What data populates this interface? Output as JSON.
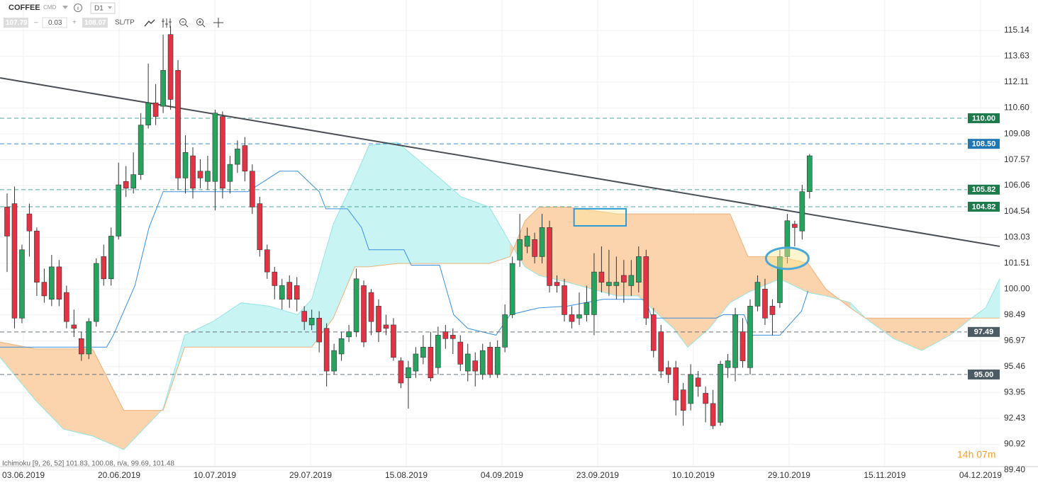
{
  "toolbar": {
    "symbol": "COFFEE",
    "market": "CMD",
    "timeframe": "D1",
    "bid": "107.79",
    "spread": "0.03",
    "ask": "108.07",
    "sltp": "SL/TP"
  },
  "indicator_label": "Ichimoku [9, 26, 52] 101.83, 100.08, n/a, 99.69, 101.48",
  "timer": "14h 07m",
  "chart_data": {
    "type": "candlestick",
    "up_color": "#27a35f",
    "down_color": "#e23344",
    "xlim": [
      -0.954,
      133.588
    ],
    "ylim": [
      89.65,
      116.92
    ],
    "grid": true,
    "xticks": [
      {
        "value": 2.2,
        "label": "03.06.2019"
      },
      {
        "value": 15.08,
        "label": "20.06.2019"
      },
      {
        "value": 27.96,
        "label": "10.07.2019"
      },
      {
        "value": 40.84,
        "label": "29.07.2019"
      },
      {
        "value": 53.72,
        "label": "15.08.2019"
      },
      {
        "value": 66.6,
        "label": "04.09.2019"
      },
      {
        "value": 79.48,
        "label": "23.09.2019"
      },
      {
        "value": 92.36,
        "label": "10.10.2019"
      },
      {
        "value": 105.24,
        "label": "29.10.2019"
      },
      {
        "value": 118.12,
        "label": "15.11.2019"
      },
      {
        "value": 131.0,
        "label": "04.12.2019"
      }
    ],
    "yticks": [
      115.14,
      113.63,
      112.11,
      {
        "value": 110.6,
        "label": "110.60"
      },
      109.08,
      107.57,
      106.06,
      104.54,
      103.03,
      101.51,
      {
        "value": 100,
        "label": "100.00"
      },
      98.49,
      96.97,
      95.46,
      93.95,
      92.43,
      90.92,
      {
        "value": 89.4,
        "label": "89.40"
      }
    ],
    "open": [
      104.8,
      105.0,
      98.3,
      104.4,
      103.4,
      100.4,
      99.4,
      101.3,
      99.8,
      97.9,
      97.1,
      96.2,
      98.1,
      101.9,
      100.6,
      103.1,
      106.3,
      105.9,
      106.7,
      109.6,
      110.9,
      110.7,
      114.9,
      112.8,
      106.5,
      107.8,
      106.9,
      106.3,
      106.3,
      110.1,
      106.3,
      107.3,
      108.4,
      106.9,
      105.0,
      102.3,
      101.0,
      99.4,
      100.4,
      100.2,
      98.7,
      97.9,
      98.3,
      97.7,
      95.2,
      96.2,
      97.2,
      97.5,
      100.2,
      99.8,
      99.0,
      97.9,
      97.9,
      95.8,
      94.8,
      95.2,
      96.0,
      96.6,
      95.4,
      97.5,
      97.3,
      96.9,
      95.2,
      95.8,
      95.0,
      96.6,
      95.0,
      96.6,
      98.5,
      101.7,
      102.5,
      102.9,
      101.9,
      103.6,
      100.4,
      100.2,
      98.5,
      98.3,
      98.5,
      98.5,
      101.0,
      100.2,
      100.2,
      100.8,
      100.2,
      100.4,
      101.9,
      98.5,
      97.5,
      95.4,
      95.4,
      94.1,
      93.3,
      94.8,
      93.9,
      93.3,
      92.2,
      95.4,
      95.4,
      97.5,
      95.4,
      99.0,
      100.0,
      99.0,
      99.2,
      101.9,
      103.8,
      103.4,
      105.7
    ],
    "high": [
      105.6,
      106.0,
      102.6,
      105.0,
      103.6,
      101.2,
      102.0,
      101.7,
      100.2,
      98.8,
      97.5,
      98.3,
      101.8,
      102.6,
      103.6,
      107.4,
      107.2,
      108.0,
      110.3,
      113.2,
      112.0,
      114.9,
      115.4,
      113.4,
      109.0,
      108.3,
      107.6,
      107.8,
      110.5,
      110.4,
      107.8,
      108.7,
      108.9,
      107.3,
      105.4,
      102.6,
      101.3,
      100.6,
      100.8,
      100.7,
      99.0,
      98.8,
      98.7,
      98.0,
      96.8,
      97.5,
      97.9,
      101.2,
      100.5,
      100.0,
      99.4,
      98.5,
      98.3,
      96.0,
      95.8,
      96.6,
      97.3,
      97.5,
      97.8,
      97.9,
      97.7,
      97.3,
      96.8,
      96.3,
      96.8,
      96.9,
      97.0,
      99.1,
      101.9,
      104.4,
      103.6,
      103.3,
      104.4,
      104.0,
      100.8,
      100.6,
      99.0,
      99.8,
      100.2,
      102.1,
      102.5,
      102.3,
      101.9,
      101.7,
      101.7,
      102.5,
      102.3,
      98.9,
      97.9,
      95.8,
      95.8,
      94.5,
      95.6,
      95.2,
      94.3,
      94.1,
      95.8,
      96.2,
      98.9,
      98.3,
      99.4,
      100.8,
      100.6,
      99.4,
      102.3,
      104.4,
      104.0,
      106.1,
      107.9
    ],
    "low": [
      101.0,
      97.7,
      98.0,
      101.9,
      99.6,
      99.2,
      99.0,
      99.0,
      97.7,
      97.2,
      95.8,
      95.9,
      97.8,
      100.2,
      100.2,
      102.9,
      105.4,
      105.6,
      106.4,
      109.4,
      109.6,
      110.3,
      110.5,
      105.8,
      105.6,
      105.3,
      105.9,
      105.8,
      104.6,
      105.3,
      105.6,
      106.8,
      106.3,
      104.4,
      101.9,
      100.6,
      99.4,
      98.8,
      98.9,
      98.7,
      97.6,
      97.6,
      96.3,
      94.3,
      95.0,
      95.8,
      96.9,
      97.2,
      96.6,
      97.3,
      96.9,
      97.3,
      95.8,
      94.2,
      93.0,
      94.8,
      95.6,
      94.6,
      95.0,
      96.5,
      96.2,
      95.2,
      94.6,
      94.3,
      94.7,
      94.8,
      94.8,
      96.3,
      98.3,
      101.3,
      102.1,
      101.5,
      101.5,
      99.8,
      99.8,
      98.1,
      97.7,
      97.9,
      98.1,
      97.3,
      99.8,
      99.6,
      99.4,
      99.2,
      99.6,
      99.8,
      97.9,
      96.0,
      94.8,
      94.5,
      92.6,
      92.0,
      92.9,
      93.7,
      92.2,
      91.8,
      92.0,
      94.8,
      94.6,
      95.4,
      95.0,
      98.7,
      97.9,
      97.3,
      98.9,
      101.5,
      102.5,
      102.9,
      105.3
    ],
    "close": [
      103.1,
      98.3,
      102.3,
      103.4,
      100.4,
      99.6,
      101.3,
      99.4,
      98.1,
      97.7,
      96.2,
      98.1,
      101.5,
      100.6,
      103.1,
      106.1,
      105.9,
      106.7,
      109.6,
      110.9,
      110.1,
      112.8,
      111.1,
      106.5,
      108.0,
      105.9,
      106.5,
      106.9,
      110.3,
      105.9,
      107.3,
      108.2,
      106.9,
      104.8,
      102.3,
      101.0,
      100.2,
      100.2,
      99.4,
      99.4,
      98.1,
      98.3,
      96.9,
      95.2,
      96.4,
      97.1,
      97.5,
      100.6,
      96.9,
      98.1,
      97.5,
      97.7,
      96.0,
      94.5,
      95.4,
      96.2,
      96.6,
      94.8,
      97.3,
      97.1,
      97.1,
      95.6,
      96.2,
      95.2,
      96.4,
      95.0,
      96.6,
      98.5,
      101.5,
      102.9,
      103.1,
      101.9,
      103.6,
      100.2,
      100.2,
      98.5,
      98.1,
      98.5,
      99.2,
      101.0,
      100.4,
      100.4,
      100.4,
      100.4,
      100.8,
      101.9,
      98.3,
      96.4,
      95.2,
      95.0,
      93.5,
      92.9,
      95.0,
      94.3,
      93.3,
      92.0,
      95.6,
      95.8,
      98.5,
      95.8,
      99.0,
      100.4,
      98.3,
      98.5,
      101.9,
      104.0,
      103.6,
      105.7,
      107.8
    ],
    "cloud": {
      "up_color": "#c9f4f4",
      "down_color": "#fbd3ad",
      "up_edge": "#97e3e3",
      "down_edge": "#eeb27c",
      "x": [
        -0.95,
        3.8,
        7.6,
        11.5,
        15.7,
        21.0,
        23.9,
        27.7,
        31.5,
        35.3,
        39.1,
        41.0,
        43.9,
        46.8,
        48.7,
        52.5,
        58.2,
        61.1,
        64.9,
        67.7,
        69.7,
        71.6,
        75.4,
        82.1,
        84.9,
        89.7,
        91.6,
        94.5,
        97.3,
        99.7,
        104.0,
        107.8,
        110.2,
        113.5,
        115.5,
        119.3,
        123.1,
        126.9,
        129.8,
        131.7,
        133.6
      ],
      "span_a": [
        96.0,
        93.5,
        91.8,
        91.4,
        90.6,
        93.0,
        97.3,
        98.1,
        99.2,
        99.0,
        98.5,
        99.4,
        103.8,
        106.5,
        108.4,
        108.6,
        106.5,
        105.4,
        104.8,
        102.7,
        101.3,
        100.8,
        100.4,
        99.6,
        99.6,
        97.7,
        96.6,
        97.7,
        99.2,
        99.8,
        100.6,
        99.8,
        99.6,
        99.2,
        98.3,
        97.1,
        96.4,
        97.3,
        98.3,
        98.9,
        100.6
      ],
      "span_b": [
        96.9,
        96.5,
        96.5,
        96.5,
        92.9,
        92.9,
        96.6,
        96.6,
        96.6,
        96.6,
        96.6,
        96.6,
        98.3,
        101.3,
        101.3,
        101.5,
        101.5,
        101.5,
        101.5,
        101.9,
        104.0,
        104.8,
        104.8,
        104.4,
        104.4,
        104.4,
        104.4,
        104.4,
        104.4,
        101.9,
        101.9,
        101.5,
        100.0,
        98.9,
        98.3,
        98.3,
        98.3,
        98.3,
        98.3,
        98.3,
        98.3
      ]
    },
    "kijun": {
      "color": "#3b8fd9",
      "x": [
        -0.95,
        13.4,
        14.3,
        17.2,
        19.1,
        21.0,
        29.6,
        32.4,
        36.7,
        39.1,
        42.0,
        42.9,
        45.8,
        47.7,
        48.7,
        53.4,
        54.4,
        58.2,
        60.1,
        62.0,
        65.8,
        67.7,
        71.6,
        75.4,
        80.2,
        85.9,
        86.8,
        95.4,
        96.4,
        99.2,
        100.2,
        104.0,
        106.9,
        107.8
      ],
      "values": [
        96.6,
        96.6,
        97.3,
        100.2,
        103.6,
        105.7,
        105.7,
        105.7,
        106.9,
        106.9,
        105.7,
        104.7,
        104.7,
        103.6,
        102.3,
        102.3,
        101.4,
        101.4,
        98.5,
        97.7,
        97.3,
        98.5,
        98.9,
        99.0,
        99.4,
        99.4,
        98.3,
        98.3,
        98.5,
        98.5,
        97.3,
        97.3,
        98.7,
        99.9
      ]
    },
    "trendline": {
      "color": "#4a4f55",
      "x": [
        -0.95,
        133.6
      ],
      "values": [
        112.36,
        102.5
      ]
    },
    "levels": [
      {
        "value": 110,
        "label": "110.00",
        "color": "#1c7a4d",
        "line_color": "#4ba49b"
      },
      {
        "value": 108.5,
        "label": "108.50",
        "color": "#1f78b4",
        "line_color": "#3a8bc8"
      },
      {
        "value": 105.82,
        "label": "105.82",
        "color": "#1c7a4d",
        "line_color": "#4ba49b"
      },
      {
        "value": 104.82,
        "label": "104.82",
        "color": "#1c7a4d",
        "line_color": "#4ba49b"
      },
      {
        "value": 97.49,
        "label": "97.49",
        "color": "#4b5a63",
        "line_color": "#66707a"
      },
      {
        "value": 95,
        "label": "95.00",
        "color": "#4b5a63",
        "line_color": "#66707a"
      }
    ],
    "highlight_box": {
      "color": "#2a9bd6",
      "x": [
        76.3,
        83.3
      ],
      "values": [
        104.7,
        103.7
      ]
    },
    "highlight_ellipse": {
      "color": "#4aa8d8",
      "x": 105.0,
      "value": 101.8
    }
  }
}
